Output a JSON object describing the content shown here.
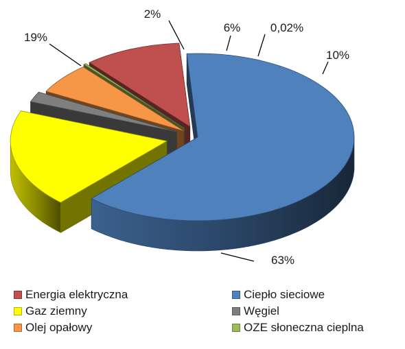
{
  "chart_data": {
    "type": "pie",
    "variant": "3d-exploded",
    "series": [
      {
        "name": "Ciepło sieciowe",
        "value": 63,
        "label": "63%",
        "color": "#4F81BD"
      },
      {
        "name": "Gaz ziemny",
        "value": 19,
        "label": "19%",
        "color": "#FFFF00"
      },
      {
        "name": "Węgiel",
        "value": 2,
        "label": "2%",
        "color": "#7F7F7F"
      },
      {
        "name": "Olej opałowy",
        "value": 6,
        "label": "6%",
        "color": "#F79646"
      },
      {
        "name": "OZE słoneczna cieplna",
        "value": 0.02,
        "label": "0,02%",
        "color": "#9BBB59"
      },
      {
        "name": "Energia elektryczna",
        "value": 10,
        "label": "10%",
        "color": "#C0504D"
      }
    ],
    "legend_order": [
      "Energia elektryczna",
      "Ciepło sieciowe",
      "Gaz ziemny",
      "Węgiel",
      "Olej opałowy",
      "OZE słoneczna cieplna"
    ],
    "legend_position": "bottom",
    "title": ""
  }
}
